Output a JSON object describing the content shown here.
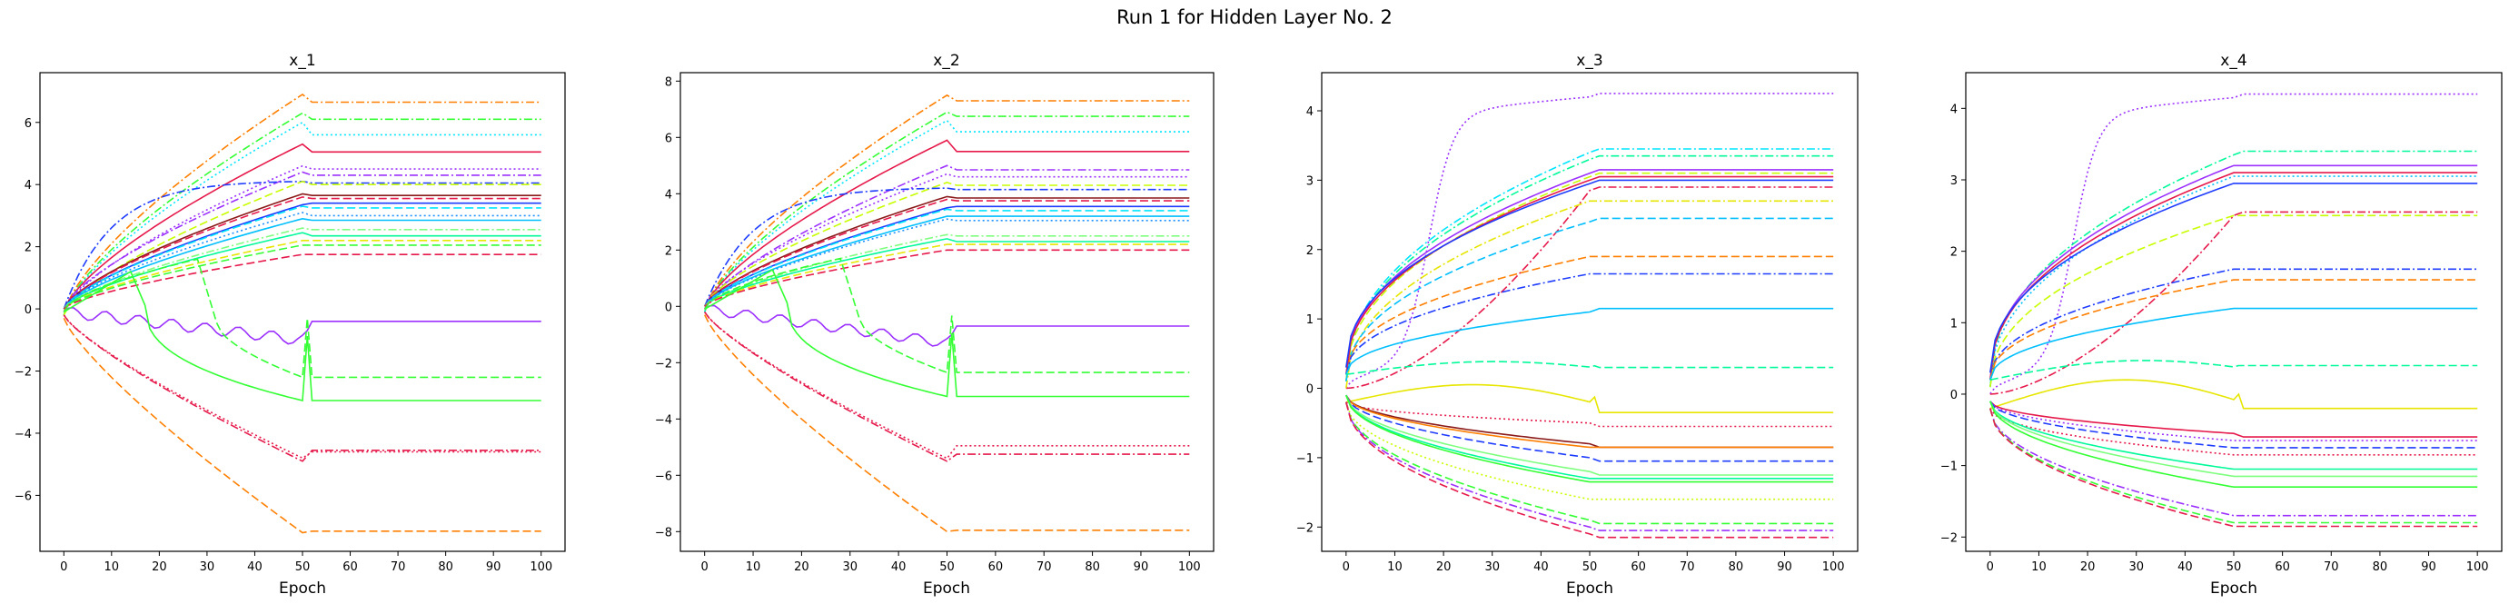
{
  "figure_title": "Run 1 for Hidden Layer No. 2",
  "chart_data": [
    {
      "type": "line",
      "title": "x_1",
      "xlabel": "Epoch",
      "ylabel": "",
      "xlim": [
        -5,
        105
      ],
      "ylim": [
        -7.8,
        7.6
      ],
      "xticks": [
        0,
        10,
        20,
        30,
        40,
        50,
        60,
        70,
        80,
        90,
        100
      ],
      "yticks": [
        -6,
        -4,
        -2,
        0,
        2,
        4,
        6
      ],
      "series": [
        {
          "color": "#ff7f00",
          "dash": "dashdot",
          "start": -0.2,
          "peak": 6.9,
          "final": 6.65,
          "curve": "rise"
        },
        {
          "color": "#33ff33",
          "dash": "dashdot",
          "start": -0.2,
          "peak": 6.3,
          "final": 6.1,
          "curve": "rise"
        },
        {
          "color": "#00e5ff",
          "dash": "dotted",
          "start": -0.2,
          "peak": 6.0,
          "final": 5.6,
          "curve": "rise"
        },
        {
          "color": "#e6194b",
          "dash": "solid",
          "start": -0.1,
          "peak": 5.3,
          "final": 5.05,
          "curve": "rise"
        },
        {
          "color": "#9b30ff",
          "dash": "dotted",
          "start": -0.1,
          "peak": 4.6,
          "final": 4.5,
          "curve": "rise"
        },
        {
          "color": "#9b30ff",
          "dash": "dashdot",
          "start": 0.0,
          "peak": 4.4,
          "final": 4.3,
          "curve": "rise"
        },
        {
          "color": "#1e3cff",
          "dash": "dashdot",
          "start": 0.0,
          "peak": 4.1,
          "final": 4.05,
          "curve": "fast"
        },
        {
          "color": "#c8ff00",
          "dash": "dashed",
          "start": -0.2,
          "peak": 4.1,
          "final": 4.0,
          "curve": "rise"
        },
        {
          "color": "#8b1a1a",
          "dash": "solid",
          "start": 0.0,
          "peak": 3.7,
          "final": 3.65,
          "curve": "rise"
        },
        {
          "color": "#e6194b",
          "dash": "dashed",
          "start": 0.0,
          "peak": 3.6,
          "final": 3.55,
          "curve": "rise"
        },
        {
          "color": "#1e3cff",
          "dash": "solid",
          "start": 0.0,
          "peak": 3.35,
          "final": 3.4,
          "curve": "rise"
        },
        {
          "color": "#00e5ff",
          "dash": "dashed",
          "start": 0.0,
          "peak": 3.3,
          "final": 3.25,
          "curve": "rise"
        },
        {
          "color": "#1e90ff",
          "dash": "dotted",
          "start": 0.0,
          "peak": 3.1,
          "final": 3.0,
          "curve": "rise"
        },
        {
          "color": "#00bfff",
          "dash": "solid",
          "start": 0.0,
          "peak": 2.9,
          "final": 2.85,
          "curve": "rise"
        },
        {
          "color": "#7fff7f",
          "dash": "dashdot",
          "start": 0.0,
          "peak": 2.6,
          "final": 2.55,
          "curve": "rise"
        },
        {
          "color": "#00fa9a",
          "dash": "solid",
          "start": 0.0,
          "peak": 2.45,
          "final": 2.35,
          "curve": "rise"
        },
        {
          "color": "#e6e600",
          "dash": "dashed",
          "start": 0.0,
          "peak": 2.2,
          "final": 2.2,
          "curve": "rise"
        },
        {
          "color": "#33ff33",
          "dash": "dashed",
          "start": 0.0,
          "peak": 2.05,
          "final": 2.05,
          "curve": "rise"
        },
        {
          "color": "#e6194b",
          "dash": "dashed",
          "start": 0.0,
          "peak": 1.75,
          "final": 1.75,
          "curve": "rise"
        },
        {
          "color": "#9b30ff",
          "dash": "solid",
          "start": -0.1,
          "peak": -1.0,
          "final": -0.4,
          "curve": "wiggle"
        },
        {
          "color": "#33ff33",
          "dash": "dashed",
          "start": -0.1,
          "peak": 1.6,
          "final": -2.2,
          "curve": "crash30"
        },
        {
          "color": "#33ff33",
          "dash": "solid",
          "start": -0.1,
          "peak": 1.2,
          "final": -2.95,
          "curve": "crash15"
        },
        {
          "color": "#e6194b",
          "dash": "dashdot",
          "start": -0.2,
          "peak": -4.9,
          "final": -4.55,
          "curve": "fall"
        },
        {
          "color": "#e6194b",
          "dash": "dotted",
          "start": -0.2,
          "peak": -4.8,
          "final": -4.6,
          "curve": "fall"
        },
        {
          "color": "#ff7f00",
          "dash": "dashed",
          "start": -0.3,
          "peak": -7.2,
          "final": -7.15,
          "curve": "fall"
        }
      ]
    },
    {
      "type": "line",
      "title": "x_2",
      "xlabel": "Epoch",
      "ylabel": "",
      "xlim": [
        -5,
        105
      ],
      "ylim": [
        -8.7,
        8.3
      ],
      "xticks": [
        0,
        10,
        20,
        30,
        40,
        50,
        60,
        70,
        80,
        90,
        100
      ],
      "yticks": [
        -8,
        -6,
        -4,
        -2,
        0,
        2,
        4,
        6,
        8
      ],
      "series": [
        {
          "color": "#ff7f00",
          "dash": "dashdot",
          "start": -0.2,
          "peak": 7.5,
          "final": 7.3,
          "curve": "rise"
        },
        {
          "color": "#33ff33",
          "dash": "dashdot",
          "start": -0.2,
          "peak": 6.9,
          "final": 6.75,
          "curve": "rise"
        },
        {
          "color": "#00e5ff",
          "dash": "dotted",
          "start": -0.2,
          "peak": 6.6,
          "final": 6.2,
          "curve": "rise"
        },
        {
          "color": "#e6194b",
          "dash": "solid",
          "start": -0.1,
          "peak": 5.9,
          "final": 5.5,
          "curve": "rise"
        },
        {
          "color": "#9b30ff",
          "dash": "dashdot",
          "start": -0.1,
          "peak": 5.0,
          "final": 4.85,
          "curve": "rise"
        },
        {
          "color": "#9b30ff",
          "dash": "dotted",
          "start": 0.0,
          "peak": 4.7,
          "final": 4.6,
          "curve": "rise"
        },
        {
          "color": "#c8ff00",
          "dash": "dashed",
          "start": 0.0,
          "peak": 4.4,
          "final": 4.3,
          "curve": "rise"
        },
        {
          "color": "#1e3cff",
          "dash": "dashdot",
          "start": 0.0,
          "peak": 4.2,
          "final": 4.15,
          "curve": "fast"
        },
        {
          "color": "#8b1a1a",
          "dash": "solid",
          "start": 0.0,
          "peak": 3.9,
          "final": 3.85,
          "curve": "rise"
        },
        {
          "color": "#e6194b",
          "dash": "dashed",
          "start": 0.0,
          "peak": 3.8,
          "final": 3.75,
          "curve": "rise"
        },
        {
          "color": "#1e3cff",
          "dash": "solid",
          "start": 0.0,
          "peak": 3.5,
          "final": 3.55,
          "curve": "rise"
        },
        {
          "color": "#00e5ff",
          "dash": "dashed",
          "start": 0.0,
          "peak": 3.45,
          "final": 3.4,
          "curve": "rise"
        },
        {
          "color": "#00bfff",
          "dash": "solid",
          "start": 0.0,
          "peak": 3.2,
          "final": 3.2,
          "curve": "rise"
        },
        {
          "color": "#1e90ff",
          "dash": "dotted",
          "start": 0.0,
          "peak": 3.1,
          "final": 3.05,
          "curve": "rise"
        },
        {
          "color": "#7fff7f",
          "dash": "dashdot",
          "start": 0.0,
          "peak": 2.55,
          "final": 2.5,
          "curve": "rise"
        },
        {
          "color": "#00fa9a",
          "dash": "solid",
          "start": 0.0,
          "peak": 2.4,
          "final": 2.3,
          "curve": "rise"
        },
        {
          "color": "#e6e600",
          "dash": "dashed",
          "start": 0.0,
          "peak": 2.2,
          "final": 2.2,
          "curve": "rise"
        },
        {
          "color": "#e6194b",
          "dash": "dashed",
          "start": 0.0,
          "peak": 2.0,
          "final": 2.0,
          "curve": "rise"
        },
        {
          "color": "#9b30ff",
          "dash": "solid",
          "start": -0.1,
          "peak": -1.3,
          "final": -0.7,
          "curve": "wiggle"
        },
        {
          "color": "#33ff33",
          "dash": "dashed",
          "start": -0.1,
          "peak": 1.7,
          "final": -2.35,
          "curve": "crash30"
        },
        {
          "color": "#33ff33",
          "dash": "solid",
          "start": -0.1,
          "peak": 1.3,
          "final": -3.2,
          "curve": "crash15"
        },
        {
          "color": "#e6194b",
          "dash": "dotted",
          "start": -0.2,
          "peak": -5.4,
          "final": -4.95,
          "curve": "fall"
        },
        {
          "color": "#e6194b",
          "dash": "dashdot",
          "start": -0.2,
          "peak": -5.5,
          "final": -5.25,
          "curve": "fall"
        },
        {
          "color": "#ff7f00",
          "dash": "dashed",
          "start": -0.3,
          "peak": -8.0,
          "final": -7.95,
          "curve": "fall"
        }
      ]
    },
    {
      "type": "line",
      "title": "x_3",
      "xlabel": "Epoch",
      "ylabel": "",
      "xlim": [
        -5,
        105
      ],
      "ylim": [
        -2.35,
        4.55
      ],
      "xticks": [
        0,
        10,
        20,
        30,
        40,
        50,
        60,
        70,
        80,
        90,
        100
      ],
      "yticks": [
        -2,
        -1,
        0,
        1,
        2,
        3,
        4
      ],
      "series": [
        {
          "color": "#9b30ff",
          "dash": "dotted",
          "start": 0.0,
          "peak": 4.2,
          "final": 4.25,
          "curve": "late"
        },
        {
          "color": "#00e5ff",
          "dash": "dashdot",
          "start": 0.1,
          "peak": 3.4,
          "final": 3.45,
          "curve": "sqrt"
        },
        {
          "color": "#00fa9a",
          "dash": "dashdot",
          "start": 0.1,
          "peak": 3.3,
          "final": 3.35,
          "curve": "sqrt"
        },
        {
          "color": "#9b30ff",
          "dash": "solid",
          "start": 0.2,
          "peak": 3.1,
          "final": 3.15,
          "curve": "sqrt"
        },
        {
          "color": "#c8ff00",
          "dash": "dashed",
          "start": 0.1,
          "peak": 3.05,
          "final": 3.1,
          "curve": "sqrt"
        },
        {
          "color": "#e6194b",
          "dash": "solid",
          "start": 0.2,
          "peak": 3.0,
          "final": 3.05,
          "curve": "sqrt"
        },
        {
          "color": "#1e3cff",
          "dash": "solid",
          "start": 0.3,
          "peak": 2.95,
          "final": 3.0,
          "curve": "sqrt"
        },
        {
          "color": "#e6194b",
          "dash": "dashdot",
          "start": 0.0,
          "peak": 2.85,
          "final": 2.9,
          "curve": "lateline"
        },
        {
          "color": "#e6e600",
          "dash": "dashdot",
          "start": 0.0,
          "peak": 2.7,
          "final": 2.7,
          "curve": "sqrt"
        },
        {
          "color": "#00bfff",
          "dash": "dashed",
          "start": 0.1,
          "peak": 2.4,
          "final": 2.45,
          "curve": "sqrt"
        },
        {
          "color": "#ff7f00",
          "dash": "dashed",
          "start": 0.2,
          "peak": 1.9,
          "final": 1.9,
          "curve": "sqrt"
        },
        {
          "color": "#1e3cff",
          "dash": "dashdot",
          "start": 0.2,
          "peak": 1.65,
          "final": 1.65,
          "curve": "sqrt"
        },
        {
          "color": "#00bfff",
          "dash": "solid",
          "start": 0.2,
          "peak": 1.1,
          "final": 1.15,
          "curve": "sqrt"
        },
        {
          "color": "#00fa9a",
          "dash": "dashed",
          "start": 0.2,
          "peak": 0.35,
          "final": 0.3,
          "curve": "bump"
        },
        {
          "color": "#e6e600",
          "dash": "solid",
          "start": -0.2,
          "peak": 0.1,
          "final": -0.35,
          "curve": "bump"
        },
        {
          "color": "#e6194b",
          "dash": "dotted",
          "start": -0.2,
          "peak": -0.5,
          "final": -0.55,
          "curve": "drift"
        },
        {
          "color": "#8b1a1a",
          "dash": "solid",
          "start": -0.1,
          "peak": -0.8,
          "final": -0.85,
          "curve": "drift"
        },
        {
          "color": "#ff7f00",
          "dash": "solid",
          "start": -0.1,
          "peak": -0.85,
          "final": -0.85,
          "curve": "drift"
        },
        {
          "color": "#1e3cff",
          "dash": "dashed",
          "start": -0.1,
          "peak": -1.0,
          "final": -1.05,
          "curve": "drift"
        },
        {
          "color": "#7fff7f",
          "dash": "solid",
          "start": -0.1,
          "peak": -1.2,
          "final": -1.25,
          "curve": "drift"
        },
        {
          "color": "#00fa9a",
          "dash": "solid",
          "start": -0.1,
          "peak": -1.3,
          "final": -1.3,
          "curve": "drift"
        },
        {
          "color": "#33ff33",
          "dash": "solid",
          "start": -0.1,
          "peak": -1.35,
          "final": -1.35,
          "curve": "drift"
        },
        {
          "color": "#c8ff00",
          "dash": "dotted",
          "start": -0.2,
          "peak": -1.6,
          "final": -1.6,
          "curve": "drift"
        },
        {
          "color": "#33ff33",
          "dash": "dashed",
          "start": -0.2,
          "peak": -1.9,
          "final": -1.95,
          "curve": "drift"
        },
        {
          "color": "#9b30ff",
          "dash": "dashdot",
          "start": -0.2,
          "peak": -2.0,
          "final": -2.05,
          "curve": "drift"
        },
        {
          "color": "#e6194b",
          "dash": "dashed",
          "start": -0.2,
          "peak": -2.1,
          "final": -2.15,
          "curve": "drift"
        }
      ]
    },
    {
      "type": "line",
      "title": "x_4",
      "xlabel": "Epoch",
      "ylabel": "",
      "xlim": [
        -5,
        105
      ],
      "ylim": [
        -2.2,
        4.5
      ],
      "xticks": [
        0,
        10,
        20,
        30,
        40,
        50,
        60,
        70,
        80,
        90,
        100
      ],
      "yticks": [
        -2,
        -1,
        0,
        1,
        2,
        3,
        4
      ],
      "series": [
        {
          "color": "#9b30ff",
          "dash": "dotted",
          "start": 0.0,
          "peak": 4.15,
          "final": 4.2,
          "curve": "late"
        },
        {
          "color": "#00fa9a",
          "dash": "dashdot",
          "start": 0.1,
          "peak": 3.35,
          "final": 3.4,
          "curve": "sqrt"
        },
        {
          "color": "#9b30ff",
          "dash": "solid",
          "start": 0.2,
          "peak": 3.2,
          "final": 3.2,
          "curve": "sqrt"
        },
        {
          "color": "#e6194b",
          "dash": "solid",
          "start": 0.2,
          "peak": 3.1,
          "final": 3.1,
          "curve": "sqrt"
        },
        {
          "color": "#00bfff",
          "dash": "dotted",
          "start": 0.1,
          "peak": 3.05,
          "final": 3.05,
          "curve": "sqrt"
        },
        {
          "color": "#1e3cff",
          "dash": "solid",
          "start": 0.3,
          "peak": 2.95,
          "final": 2.95,
          "curve": "sqrt"
        },
        {
          "color": "#e6194b",
          "dash": "dashdot",
          "start": 0.0,
          "peak": 2.5,
          "final": 2.55,
          "curve": "lateline"
        },
        {
          "color": "#c8ff00",
          "dash": "dashed",
          "start": 0.1,
          "peak": 2.5,
          "final": 2.5,
          "curve": "sqrt"
        },
        {
          "color": "#1e3cff",
          "dash": "dashdot",
          "start": 0.2,
          "peak": 1.75,
          "final": 1.75,
          "curve": "sqrt"
        },
        {
          "color": "#ff7f00",
          "dash": "dashed",
          "start": 0.2,
          "peak": 1.6,
          "final": 1.6,
          "curve": "sqrt"
        },
        {
          "color": "#00bfff",
          "dash": "solid",
          "start": 0.2,
          "peak": 1.2,
          "final": 1.2,
          "curve": "sqrt"
        },
        {
          "color": "#00fa9a",
          "dash": "dashed",
          "start": 0.2,
          "peak": 0.4,
          "final": 0.4,
          "curve": "bump"
        },
        {
          "color": "#e6e600",
          "dash": "solid",
          "start": -0.2,
          "peak": 0.2,
          "final": -0.2,
          "curve": "bump"
        },
        {
          "color": "#e6194b",
          "dash": "solid",
          "start": -0.1,
          "peak": -0.55,
          "final": -0.6,
          "curve": "drift"
        },
        {
          "color": "#9b30ff",
          "dash": "dotted",
          "start": -0.1,
          "peak": -0.65,
          "final": -0.65,
          "curve": "drift"
        },
        {
          "color": "#1e3cff",
          "dash": "dashed",
          "start": -0.1,
          "peak": -0.75,
          "final": -0.75,
          "curve": "drift"
        },
        {
          "color": "#e6194b",
          "dash": "dotted",
          "start": -0.2,
          "peak": -0.85,
          "final": -0.85,
          "curve": "drift"
        },
        {
          "color": "#00fa9a",
          "dash": "solid",
          "start": -0.1,
          "peak": -1.05,
          "final": -1.05,
          "curve": "drift"
        },
        {
          "color": "#7fff7f",
          "dash": "solid",
          "start": -0.1,
          "peak": -1.15,
          "final": -1.15,
          "curve": "drift"
        },
        {
          "color": "#33ff33",
          "dash": "solid",
          "start": -0.1,
          "peak": -1.3,
          "final": -1.3,
          "curve": "drift"
        },
        {
          "color": "#9b30ff",
          "dash": "dashdot",
          "start": -0.2,
          "peak": -1.7,
          "final": -1.7,
          "curve": "drift"
        },
        {
          "color": "#33ff33",
          "dash": "dashed",
          "start": -0.2,
          "peak": -1.8,
          "final": -1.8,
          "curve": "drift"
        },
        {
          "color": "#e6194b",
          "dash": "dashed",
          "start": -0.2,
          "peak": -1.85,
          "final": -1.85,
          "curve": "drift"
        }
      ]
    }
  ]
}
